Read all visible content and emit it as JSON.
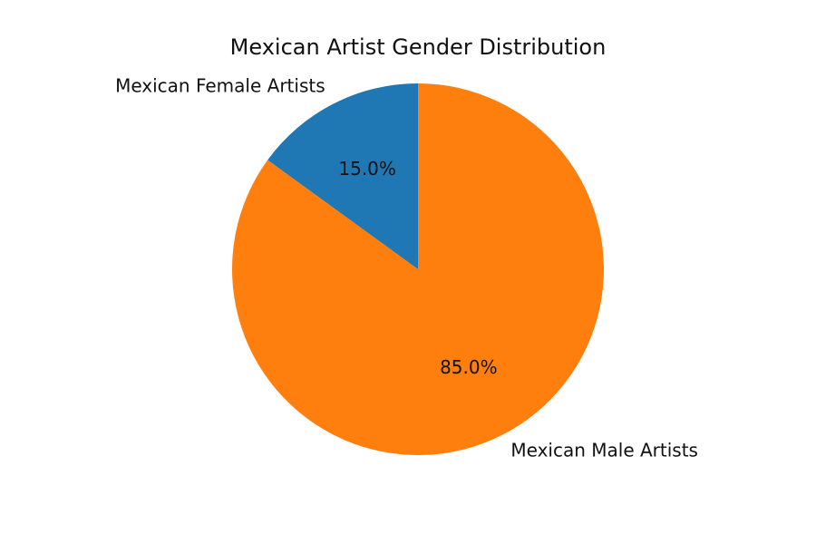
{
  "chart_data": {
    "type": "pie",
    "title": "Mexican Artist Gender Distribution",
    "categories": [
      "Mexican Female Artists",
      "Mexican Male Artists"
    ],
    "values": [
      15.0,
      85.0
    ],
    "percent_labels": [
      "15.0%",
      "85.0%"
    ],
    "colors": [
      "#1f77b4",
      "#ff7f0e"
    ],
    "start_angle_deg": 90,
    "direction": "counterclockwise"
  }
}
